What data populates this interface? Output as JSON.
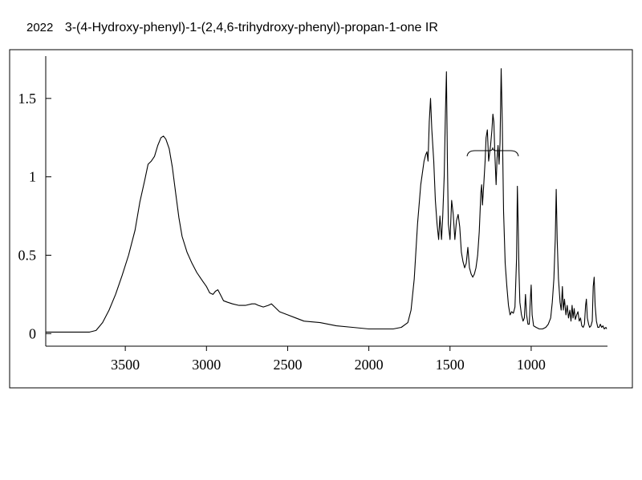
{
  "header": {
    "spectrum_id": "2022",
    "title": "3-(4-Hydroxy-phenyl)-1-(2,4,6-trihydroxy-phenyl)-propan-1-one IR"
  },
  "chart_data": {
    "type": "line",
    "title": "3-(4-Hydroxy-phenyl)-1-(2,4,6-trihydroxy-phenyl)-propan-1-one IR",
    "xlabel": "",
    "ylabel": "",
    "xlim": [
      3990,
      530
    ],
    "ylim": [
      -0.08,
      1.77
    ],
    "x_reversed": true,
    "grid": false,
    "x_ticks": [
      3500,
      3000,
      2500,
      2000,
      1500,
      1000
    ],
    "x_tick_labels": [
      "3500",
      "3000",
      "2500",
      "2000",
      "1500",
      "1000"
    ],
    "y_ticks": [
      0,
      0.5,
      1,
      1.5
    ],
    "y_tick_labels": [
      "0",
      "0.5",
      "1",
      "1.5"
    ],
    "series": [
      {
        "points": [
          [
            3990,
            0.01
          ],
          [
            3800,
            0.01
          ],
          [
            3720,
            0.01
          ],
          [
            3680,
            0.02
          ],
          [
            3640,
            0.07
          ],
          [
            3600,
            0.15
          ],
          [
            3560,
            0.25
          ],
          [
            3520,
            0.37
          ],
          [
            3480,
            0.5
          ],
          [
            3440,
            0.66
          ],
          [
            3410,
            0.84
          ],
          [
            3380,
            0.98
          ],
          [
            3360,
            1.08
          ],
          [
            3340,
            1.1
          ],
          [
            3320,
            1.13
          ],
          [
            3300,
            1.2
          ],
          [
            3280,
            1.25
          ],
          [
            3265,
            1.26
          ],
          [
            3250,
            1.24
          ],
          [
            3230,
            1.18
          ],
          [
            3210,
            1.06
          ],
          [
            3190,
            0.9
          ],
          [
            3170,
            0.74
          ],
          [
            3150,
            0.62
          ],
          [
            3120,
            0.52
          ],
          [
            3090,
            0.45
          ],
          [
            3060,
            0.39
          ],
          [
            3040,
            0.36
          ],
          [
            3020,
            0.33
          ],
          [
            3000,
            0.3
          ],
          [
            2980,
            0.26
          ],
          [
            2960,
            0.25
          ],
          [
            2945,
            0.27
          ],
          [
            2930,
            0.28
          ],
          [
            2915,
            0.25
          ],
          [
            2895,
            0.21
          ],
          [
            2870,
            0.2
          ],
          [
            2840,
            0.19
          ],
          [
            2800,
            0.18
          ],
          [
            2760,
            0.18
          ],
          [
            2720,
            0.19
          ],
          [
            2700,
            0.19
          ],
          [
            2680,
            0.18
          ],
          [
            2650,
            0.17
          ],
          [
            2620,
            0.18
          ],
          [
            2600,
            0.19
          ],
          [
            2580,
            0.17
          ],
          [
            2550,
            0.14
          ],
          [
            2500,
            0.12
          ],
          [
            2450,
            0.1
          ],
          [
            2400,
            0.08
          ],
          [
            2300,
            0.07
          ],
          [
            2200,
            0.05
          ],
          [
            2100,
            0.04
          ],
          [
            2000,
            0.03
          ],
          [
            1950,
            0.03
          ],
          [
            1900,
            0.03
          ],
          [
            1850,
            0.03
          ],
          [
            1800,
            0.04
          ],
          [
            1760,
            0.07
          ],
          [
            1740,
            0.15
          ],
          [
            1720,
            0.35
          ],
          [
            1700,
            0.7
          ],
          [
            1680,
            0.95
          ],
          [
            1660,
            1.1
          ],
          [
            1650,
            1.14
          ],
          [
            1642,
            1.16
          ],
          [
            1635,
            1.1
          ],
          [
            1628,
            1.35
          ],
          [
            1620,
            1.5
          ],
          [
            1612,
            1.3
          ],
          [
            1600,
            1.1
          ],
          [
            1590,
            0.85
          ],
          [
            1580,
            0.7
          ],
          [
            1570,
            0.6
          ],
          [
            1562,
            0.75
          ],
          [
            1552,
            0.6
          ],
          [
            1545,
            0.75
          ],
          [
            1536,
            1.0
          ],
          [
            1528,
            1.42
          ],
          [
            1522,
            1.67
          ],
          [
            1516,
            1.1
          ],
          [
            1510,
            0.7
          ],
          [
            1500,
            0.6
          ],
          [
            1490,
            0.85
          ],
          [
            1480,
            0.76
          ],
          [
            1470,
            0.6
          ],
          [
            1460,
            0.72
          ],
          [
            1450,
            0.76
          ],
          [
            1440,
            0.68
          ],
          [
            1430,
            0.52
          ],
          [
            1420,
            0.46
          ],
          [
            1410,
            0.42
          ],
          [
            1400,
            0.45
          ],
          [
            1390,
            0.55
          ],
          [
            1380,
            0.42
          ],
          [
            1370,
            0.38
          ],
          [
            1360,
            0.36
          ],
          [
            1350,
            0.38
          ],
          [
            1340,
            0.42
          ],
          [
            1330,
            0.5
          ],
          [
            1320,
            0.65
          ],
          [
            1310,
            0.9
          ],
          [
            1305,
            0.95
          ],
          [
            1300,
            0.82
          ],
          [
            1292,
            0.95
          ],
          [
            1284,
            1.1
          ],
          [
            1278,
            1.25
          ],
          [
            1270,
            1.3
          ],
          [
            1262,
            1.1
          ],
          [
            1256,
            1.15
          ],
          [
            1250,
            1.2
          ],
          [
            1242,
            1.3
          ],
          [
            1236,
            1.4
          ],
          [
            1230,
            1.35
          ],
          [
            1224,
            1.15
          ],
          [
            1216,
            0.95
          ],
          [
            1210,
            1.12
          ],
          [
            1204,
            1.2
          ],
          [
            1198,
            1.08
          ],
          [
            1192,
            1.22
          ],
          [
            1185,
            1.69
          ],
          [
            1178,
            1.35
          ],
          [
            1170,
            0.78
          ],
          [
            1160,
            0.45
          ],
          [
            1150,
            0.3
          ],
          [
            1140,
            0.18
          ],
          [
            1130,
            0.12
          ],
          [
            1120,
            0.14
          ],
          [
            1110,
            0.13
          ],
          [
            1100,
            0.17
          ],
          [
            1090,
            0.48
          ],
          [
            1085,
            0.94
          ],
          [
            1080,
            0.7
          ],
          [
            1075,
            0.4
          ],
          [
            1070,
            0.2
          ],
          [
            1060,
            0.12
          ],
          [
            1050,
            0.08
          ],
          [
            1042,
            0.1
          ],
          [
            1035,
            0.25
          ],
          [
            1028,
            0.12
          ],
          [
            1020,
            0.06
          ],
          [
            1012,
            0.06
          ],
          [
            1006,
            0.2
          ],
          [
            1000,
            0.31
          ],
          [
            994,
            0.12
          ],
          [
            985,
            0.05
          ],
          [
            970,
            0.04
          ],
          [
            950,
            0.03
          ],
          [
            930,
            0.03
          ],
          [
            910,
            0.04
          ],
          [
            895,
            0.06
          ],
          [
            880,
            0.1
          ],
          [
            870,
            0.2
          ],
          [
            860,
            0.35
          ],
          [
            852,
            0.6
          ],
          [
            846,
            0.92
          ],
          [
            840,
            0.6
          ],
          [
            832,
            0.35
          ],
          [
            822,
            0.2
          ],
          [
            815,
            0.15
          ],
          [
            808,
            0.3
          ],
          [
            802,
            0.15
          ],
          [
            795,
            0.22
          ],
          [
            786,
            0.12
          ],
          [
            778,
            0.18
          ],
          [
            770,
            0.1
          ],
          [
            762,
            0.15
          ],
          [
            755,
            0.08
          ],
          [
            748,
            0.18
          ],
          [
            742,
            0.1
          ],
          [
            735,
            0.16
          ],
          [
            728,
            0.09
          ],
          [
            720,
            0.12
          ],
          [
            712,
            0.14
          ],
          [
            704,
            0.08
          ],
          [
            696,
            0.1
          ],
          [
            688,
            0.05
          ],
          [
            680,
            0.04
          ],
          [
            672,
            0.06
          ],
          [
            665,
            0.18
          ],
          [
            660,
            0.22
          ],
          [
            654,
            0.1
          ],
          [
            646,
            0.06
          ],
          [
            640,
            0.04
          ],
          [
            632,
            0.05
          ],
          [
            624,
            0.08
          ],
          [
            618,
            0.3
          ],
          [
            612,
            0.36
          ],
          [
            606,
            0.18
          ],
          [
            598,
            0.08
          ],
          [
            590,
            0.04
          ],
          [
            582,
            0.04
          ],
          [
            574,
            0.06
          ],
          [
            566,
            0.04
          ],
          [
            558,
            0.05
          ],
          [
            550,
            0.03
          ],
          [
            540,
            0.04
          ],
          [
            535,
            0.03
          ]
        ]
      }
    ]
  }
}
